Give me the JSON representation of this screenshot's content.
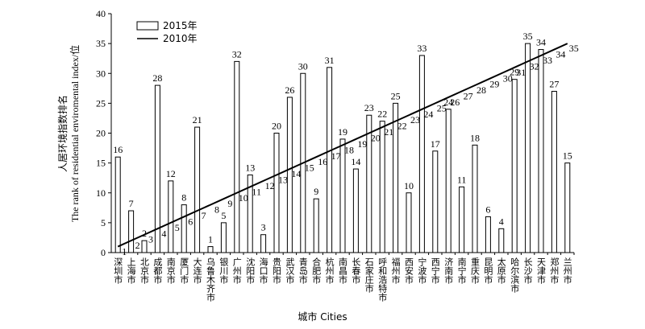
{
  "chart_data": {
    "type": "bar",
    "x_label": "城市 Cities",
    "y_label": [
      "人居环境指数排名",
      "The rank of residential enviromental index/位"
    ],
    "categories": [
      "深圳市",
      "上海市",
      "北京市",
      "成都市",
      "南京市",
      "厦门市",
      "大连市",
      "乌鲁木齐市",
      "银川市",
      "广州市",
      "沈阳市",
      "海口市",
      "贵阳市",
      "武汉市",
      "青岛市",
      "合肥市",
      "杭州市",
      "南昌市",
      "长春市",
      "石家庄市",
      "呼和浩特市",
      "福州市",
      "西安市",
      "宁波市",
      "西宁市",
      "济南市",
      "南宁市",
      "重庆市",
      "昆明市",
      "太原市",
      "哈尔滨市",
      "长沙市",
      "天津市",
      "郑州市",
      "兰州市"
    ],
    "series": [
      {
        "name": "2015年",
        "type": "bar",
        "color": "#000000",
        "values": [
          16,
          7,
          2,
          28,
          12,
          8,
          21,
          1,
          5,
          32,
          13,
          3,
          20,
          26,
          30,
          9,
          31,
          19,
          14,
          23,
          22,
          25,
          10,
          33,
          17,
          24,
          11,
          18,
          6,
          4,
          29,
          35,
          34,
          27,
          15
        ]
      },
      {
        "name": "2010年",
        "type": "line",
        "color": "#000000",
        "values": [
          1,
          2,
          3,
          4,
          5,
          6,
          7,
          8,
          9,
          10,
          11,
          12,
          13,
          14,
          15,
          16,
          17,
          18,
          19,
          20,
          21,
          22,
          23,
          24,
          25,
          26,
          27,
          28,
          29,
          30,
          31,
          32,
          33,
          34,
          35
        ]
      }
    ],
    "ylim": [
      0,
      40
    ],
    "yticks": [
      0,
      5,
      10,
      15,
      20,
      25,
      30,
      35,
      40
    ],
    "legend": "upper-left",
    "grid": false
  }
}
